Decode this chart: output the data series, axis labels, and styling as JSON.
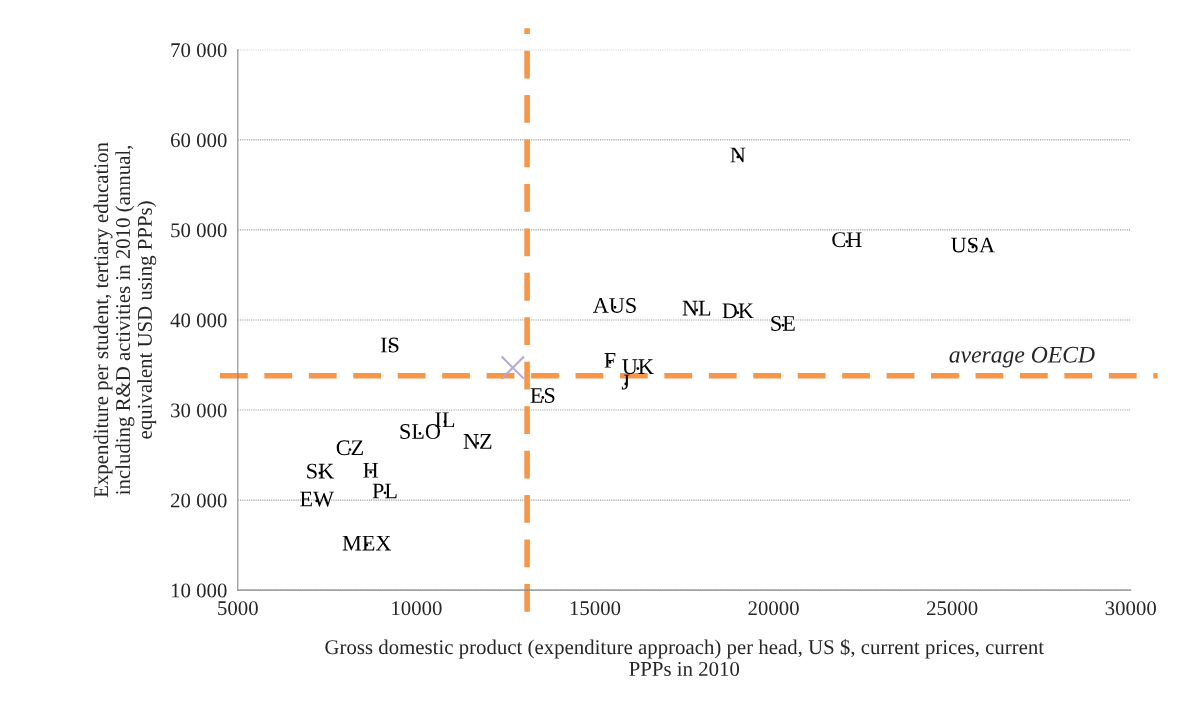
{
  "chart_data": {
    "type": "scatter",
    "xlabel": "Gross domestic product (expenditure approach) per head, US $, current prices, current\nPPPs in 2010",
    "ylabel": "Expenditure per student, tertiary education\nincluding R&D activities in 2010 (annual,\nequivalent USD using PPPs)",
    "series": [
      {
        "type": "scatter",
        "marker": "none",
        "color": "#000000",
        "x": [
          19000,
          22050,
          25580,
          15560,
          17850,
          19000,
          20260,
          9260,
          15420,
          16200,
          15860,
          13540,
          10800,
          10100,
          11720,
          8140,
          7300,
          8720,
          9120,
          7210,
          8610
        ],
        "values": [
          58100,
          48700,
          48100,
          41400,
          41100,
          40800,
          39400,
          37000,
          35300,
          34600,
          32900,
          31400,
          28700,
          27400,
          26300,
          25600,
          23000,
          23100,
          20800,
          19900,
          15000
        ],
        "value_labels": [
          "N",
          "CH",
          "USA",
          "AUS",
          "NL",
          "DK",
          "SE",
          "IS",
          "F",
          "UK",
          "J",
          "ES",
          "IL",
          "SLO",
          "NZ",
          "CZ",
          "SK",
          "H",
          "PL",
          "EW",
          "MEX"
        ]
      },
      {
        "type": "scatter",
        "marker": "cross",
        "color": "#b3a9d3",
        "x": [
          12700
        ],
        "values": [
          34700
        ]
      }
    ],
    "ref_lines": [
      {
        "axis": "x",
        "value": 13100,
        "color": "#f79646",
        "line_style": "dashed"
      },
      {
        "axis": "y",
        "value": 33800,
        "label": "average OECD",
        "color": "#f79646",
        "line_style": "dashed"
      }
    ],
    "xlim": [
      5000,
      30000
    ],
    "xticks": [
      5000,
      10000,
      15000,
      20000,
      25000,
      30000
    ],
    "ylim": [
      10000,
      70000
    ],
    "yticks": [
      {
        "value": 10000,
        "label": "10 000"
      },
      {
        "value": 20000,
        "label": "20 000"
      },
      {
        "value": 30000,
        "label": "30 000"
      },
      {
        "value": 40000,
        "label": "40 000"
      },
      {
        "value": 50000,
        "label": "50 000"
      },
      {
        "value": 60000,
        "label": "60 000"
      },
      {
        "value": 70000,
        "label": "70 000"
      }
    ],
    "grid": "y",
    "legend": false
  }
}
